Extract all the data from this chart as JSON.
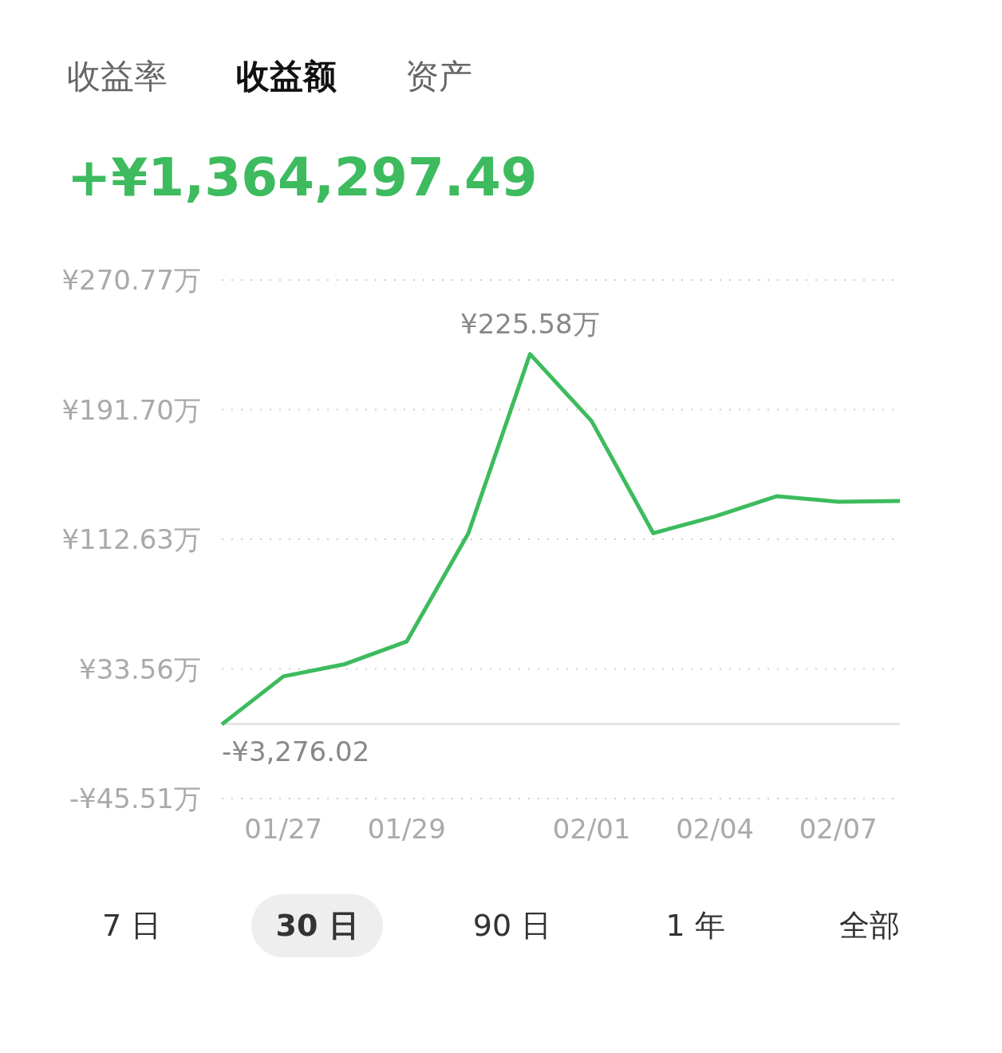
{
  "chart_data": {
    "type": "line",
    "title": "+¥1,364,297.49",
    "annotations": [
      "收益率",
      "收益额",
      "资产",
      "7 日",
      "30 日",
      "90 日",
      "1 年",
      "全部",
      {
        "text": "-¥3,276.02",
        "y": -0.33
      }
    ],
    "categories": [
      null,
      "01/27",
      null,
      "01/29",
      null,
      null,
      "02/01",
      null,
      "02/04",
      null,
      "02/07",
      null
    ],
    "series": [
      {
        "color": "#3dbb5e",
        "values": [
          -0.33,
          29,
          36.5,
          50.3,
          116.3,
          225.58,
          184.7,
          116.3,
          126.6,
          138.9,
          135.5,
          136
        ],
        "value_labels": [
          null,
          null,
          null,
          null,
          null,
          "¥225.58万",
          null,
          null,
          null,
          null,
          null,
          null
        ]
      }
    ],
    "ylim": [
      -45.51,
      270.77
    ],
    "yticks": [
      {
        "value": -45.51,
        "label": "-¥45.51万"
      },
      {
        "value": 33.56,
        "label": "¥33.56万"
      },
      {
        "value": 112.63,
        "label": "¥112.63万"
      },
      {
        "value": 191.7,
        "label": "¥191.70万"
      },
      {
        "value": 270.77,
        "label": "¥270.77万"
      }
    ],
    "ref_lines": [
      {
        "axis": "y",
        "value": 0,
        "label": null,
        "color": "#e6e6e6"
      }
    ],
    "grid": "y",
    "marker": "none",
    "line_style": "solid"
  }
}
